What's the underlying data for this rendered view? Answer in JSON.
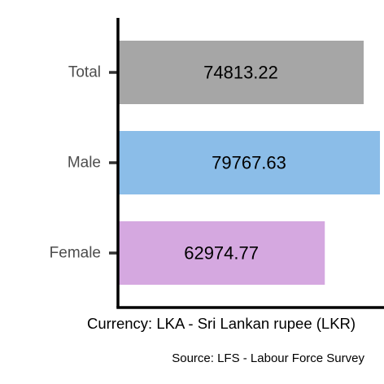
{
  "chart_data": {
    "type": "bar",
    "orientation": "horizontal",
    "categories": [
      "Total",
      "Male",
      "Female"
    ],
    "values": [
      74813.22,
      79767.63,
      62974.77
    ],
    "value_labels": [
      "74813.22",
      "79767.63",
      "62974.77"
    ],
    "colors": [
      "#a6a6a6",
      "#8bbde8",
      "#d5a8e0"
    ],
    "xlim": [
      0,
      81000
    ],
    "title": "",
    "xlabel": "Currency: LKA - Sri Lankan rupee (LKR)",
    "ylabel": "",
    "caption": "Source:  LFS - Labour Force Survey",
    "grid": false,
    "legend": "none"
  }
}
